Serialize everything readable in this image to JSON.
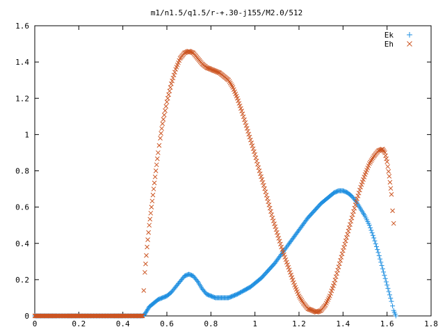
{
  "chart_data": {
    "type": "scatter",
    "title": "m1/n1.5/q1.5/r-+.30-j155/M2.0/512",
    "xlabel": "",
    "ylabel": "",
    "xlim": [
      0,
      1.8
    ],
    "ylim": [
      0,
      1.6
    ],
    "x_ticks": [
      "0",
      "0.2",
      "0.4",
      "0.6",
      "0.8",
      "1",
      "1.2",
      "1.4",
      "1.6",
      "1.8"
    ],
    "y_ticks": [
      "0",
      "0.2",
      "0.4",
      "0.6",
      "0.8",
      "1",
      "1.2",
      "1.4",
      "1.6"
    ],
    "grid": false,
    "legend_position": "top-right",
    "series": [
      {
        "name": "Ek",
        "marker": "+",
        "color": "#1f8fe0",
        "points": [
          [
            0.0,
            0
          ],
          [
            0.05,
            0
          ],
          [
            0.1,
            0
          ],
          [
            0.15,
            0
          ],
          [
            0.2,
            0
          ],
          [
            0.25,
            0
          ],
          [
            0.3,
            0
          ],
          [
            0.35,
            0
          ],
          [
            0.4,
            0
          ],
          [
            0.45,
            0
          ],
          [
            0.49,
            0
          ],
          [
            0.5,
            0.01
          ],
          [
            0.51,
            0.03
          ],
          [
            0.52,
            0.05
          ],
          [
            0.53,
            0.06
          ],
          [
            0.54,
            0.07
          ],
          [
            0.55,
            0.08
          ],
          [
            0.56,
            0.09
          ],
          [
            0.58,
            0.1
          ],
          [
            0.6,
            0.11
          ],
          [
            0.62,
            0.13
          ],
          [
            0.64,
            0.16
          ],
          [
            0.66,
            0.19
          ],
          [
            0.68,
            0.22
          ],
          [
            0.7,
            0.23
          ],
          [
            0.72,
            0.22
          ],
          [
            0.74,
            0.19
          ],
          [
            0.76,
            0.15
          ],
          [
            0.78,
            0.12
          ],
          [
            0.8,
            0.11
          ],
          [
            0.82,
            0.1
          ],
          [
            0.84,
            0.1
          ],
          [
            0.86,
            0.1
          ],
          [
            0.88,
            0.1
          ],
          [
            0.9,
            0.11
          ],
          [
            0.92,
            0.12
          ],
          [
            0.95,
            0.14
          ],
          [
            0.98,
            0.16
          ],
          [
            1.0,
            0.18
          ],
          [
            1.03,
            0.21
          ],
          [
            1.06,
            0.25
          ],
          [
            1.09,
            0.29
          ],
          [
            1.12,
            0.34
          ],
          [
            1.15,
            0.39
          ],
          [
            1.18,
            0.44
          ],
          [
            1.21,
            0.49
          ],
          [
            1.24,
            0.54
          ],
          [
            1.27,
            0.58
          ],
          [
            1.3,
            0.62
          ],
          [
            1.33,
            0.65
          ],
          [
            1.36,
            0.68
          ],
          [
            1.38,
            0.69
          ],
          [
            1.4,
            0.69
          ],
          [
            1.42,
            0.68
          ],
          [
            1.44,
            0.66
          ],
          [
            1.46,
            0.63
          ],
          [
            1.48,
            0.59
          ],
          [
            1.5,
            0.55
          ],
          [
            1.52,
            0.5
          ],
          [
            1.54,
            0.43
          ],
          [
            1.56,
            0.35
          ],
          [
            1.58,
            0.26
          ],
          [
            1.6,
            0.17
          ],
          [
            1.62,
            0.08
          ],
          [
            1.63,
            0.03
          ],
          [
            1.64,
            0.0
          ]
        ]
      },
      {
        "name": "Eh",
        "marker": "x",
        "color": "#cc5522",
        "points": [
          [
            0.0,
            0
          ],
          [
            0.05,
            0
          ],
          [
            0.1,
            0
          ],
          [
            0.15,
            0
          ],
          [
            0.2,
            0
          ],
          [
            0.25,
            0
          ],
          [
            0.3,
            0
          ],
          [
            0.35,
            0
          ],
          [
            0.4,
            0
          ],
          [
            0.45,
            0
          ],
          [
            0.49,
            0.0
          ],
          [
            0.495,
            0.14
          ],
          [
            0.5,
            0.24
          ],
          [
            0.51,
            0.38
          ],
          [
            0.52,
            0.5
          ],
          [
            0.53,
            0.6
          ],
          [
            0.54,
            0.7
          ],
          [
            0.55,
            0.8
          ],
          [
            0.56,
            0.9
          ],
          [
            0.57,
            0.98
          ],
          [
            0.58,
            1.06
          ],
          [
            0.6,
            1.18
          ],
          [
            0.62,
            1.28
          ],
          [
            0.64,
            1.36
          ],
          [
            0.66,
            1.42
          ],
          [
            0.68,
            1.45
          ],
          [
            0.7,
            1.46
          ],
          [
            0.72,
            1.45
          ],
          [
            0.74,
            1.42
          ],
          [
            0.76,
            1.39
          ],
          [
            0.78,
            1.37
          ],
          [
            0.8,
            1.36
          ],
          [
            0.82,
            1.35
          ],
          [
            0.84,
            1.34
          ],
          [
            0.86,
            1.32
          ],
          [
            0.88,
            1.3
          ],
          [
            0.9,
            1.26
          ],
          [
            0.92,
            1.2
          ],
          [
            0.94,
            1.13
          ],
          [
            0.96,
            1.05
          ],
          [
            0.98,
            0.97
          ],
          [
            1.0,
            0.89
          ],
          [
            1.02,
            0.8
          ],
          [
            1.04,
            0.72
          ],
          [
            1.06,
            0.63
          ],
          [
            1.08,
            0.54
          ],
          [
            1.1,
            0.46
          ],
          [
            1.12,
            0.38
          ],
          [
            1.14,
            0.31
          ],
          [
            1.16,
            0.24
          ],
          [
            1.18,
            0.17
          ],
          [
            1.2,
            0.11
          ],
          [
            1.22,
            0.07
          ],
          [
            1.24,
            0.04
          ],
          [
            1.26,
            0.03
          ],
          [
            1.28,
            0.02
          ],
          [
            1.3,
            0.03
          ],
          [
            1.32,
            0.06
          ],
          [
            1.34,
            0.11
          ],
          [
            1.36,
            0.18
          ],
          [
            1.38,
            0.27
          ],
          [
            1.4,
            0.36
          ],
          [
            1.42,
            0.45
          ],
          [
            1.44,
            0.54
          ],
          [
            1.46,
            0.63
          ],
          [
            1.48,
            0.71
          ],
          [
            1.5,
            0.78
          ],
          [
            1.52,
            0.84
          ],
          [
            1.54,
            0.88
          ],
          [
            1.56,
            0.91
          ],
          [
            1.58,
            0.92
          ],
          [
            1.59,
            0.9
          ],
          [
            1.6,
            0.85
          ],
          [
            1.61,
            0.77
          ],
          [
            1.62,
            0.67
          ],
          [
            1.625,
            0.58
          ],
          [
            1.63,
            0.51
          ]
        ]
      }
    ]
  }
}
